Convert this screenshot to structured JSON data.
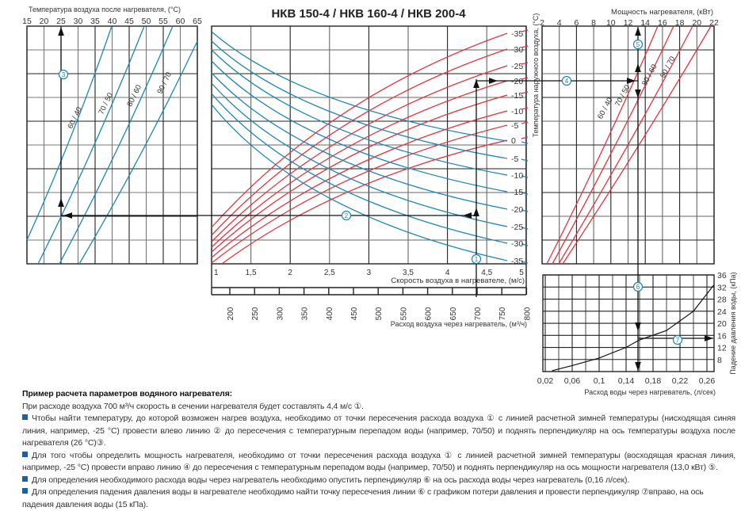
{
  "title": "НКВ 150-4 / НКВ 160-4 / НКВ 200-4",
  "left_chart": {
    "axis_title": "Температура воздуха после нагревателя, (°C)",
    "x_ticks": [
      "15",
      "20",
      "25",
      "30",
      "35",
      "40",
      "45",
      "50",
      "55",
      "60",
      "65"
    ],
    "curve_labels": [
      "60 / 40",
      "70 / 50",
      "80 / 60",
      "90 / 70"
    ]
  },
  "middle_chart": {
    "speed_ticks": [
      "1",
      "1,5",
      "2",
      "2,5",
      "3",
      "3,5",
      "4",
      "4,5",
      "5"
    ],
    "speed_title": "Скорость воздуха в нагревателе, (м/с)",
    "flow_ticks": [
      "200",
      "250",
      "300",
      "350",
      "400",
      "450",
      "500",
      "550",
      "600",
      "650",
      "700",
      "750",
      "800"
    ],
    "flow_title": "Расход воздуха через нагреватель, (м³/ч)",
    "red_labels": [
      "-35",
      "-30",
      "-25",
      "-20",
      "-15",
      "-10",
      "-5",
      "0"
    ],
    "blue_labels": [
      "-5",
      "-10",
      "-15",
      "-20",
      "-25",
      "-30",
      "-35"
    ],
    "outdoor_temp_title": "Температура наружного воздуха, (°C)"
  },
  "power_chart": {
    "axis_title": "Мощность нагревателя, (кВт)",
    "x_ticks": [
      "2",
      "4",
      "6",
      "8",
      "10",
      "12",
      "14",
      "16",
      "18",
      "20",
      "22"
    ],
    "curve_labels": [
      "60 / 40",
      "70 / 50",
      "80 / 60",
      "90 / 70"
    ]
  },
  "pressure_chart": {
    "x_ticks": [
      "0,02",
      "0,06",
      "0,1",
      "0,14",
      "0,18",
      "0,22",
      "0,26"
    ],
    "y_ticks": [
      "36",
      "32",
      "28",
      "24",
      "20",
      "16",
      "12",
      "8"
    ],
    "x_title": "Расход воды через нагреватель, (л/сек)",
    "y_title": "Падение давления воды, (кПа)",
    "curve": [
      [
        0.03,
        4.3
      ],
      [
        0.06,
        6.0
      ],
      [
        0.1,
        8.5
      ],
      [
        0.14,
        12.0
      ],
      [
        0.16,
        14.5
      ],
      [
        0.2,
        17.6
      ],
      [
        0.24,
        24.0
      ],
      [
        0.27,
        32.6
      ]
    ]
  },
  "markers": [
    "1",
    "2",
    "3",
    "4",
    "5",
    "6",
    "7"
  ],
  "colors": {
    "blue": "#1b86b9",
    "red": "#e8323c",
    "bullet": "#1f5f9e"
  },
  "description": {
    "heading": "Пример расчета параметров водяного нагревателя:",
    "lines": [
      "При расходе воздуха 700 м³/ч скорость в сечении нагревателя будет составлять 4,4 м/с ①.",
      "Чтобы найти температуру, до которой возможен нагрев воздуха, необходимо от точки пересечения расхода воздуха ① с линией расчетной зимней температуры (нисходящая синяя",
      "линия, например, -25 °C) провести влево линию ② до пересечения с температурным перепадом воды (например, 70/50) и поднять перпендикуляр на ось температуры воздуха после",
      "нагревателя (26 °C)③.",
      "Для того чтобы определить мощность нагревателя, необходимо от точки пересечения расхода воздуха ① с линией расчетной зимней температуры (восходящая красная линия,",
      "например, -25 °C) провести вправо линию ④ до пересечения с температурным перепадом воды (например, 70/50) и поднять перпендикуляр на ось мощности нагревателя (13,0 кВт) ⑤.",
      "Для определения необходимого расхода воды через нагреватель необходимо опустить перпендикуляр ⑥ на ось расхода воды через нагреватель (0,16 л/сек).",
      "Для определения падения давления воды в нагревателе необходимо найти точку пересечения линии ⑥ с графиком потери давления и провести перпендикуляр ⑦вправо, на ось",
      "падения давления воды (15 кПа)."
    ]
  }
}
